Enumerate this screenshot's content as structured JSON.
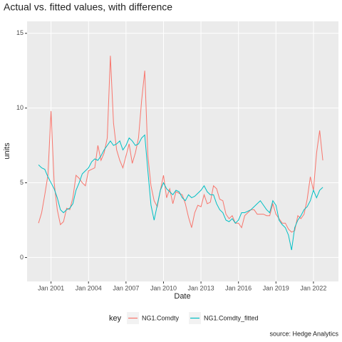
{
  "chart_data": {
    "type": "line",
    "title": "Actual vs. fitted values, with difference",
    "x_label": "Date",
    "y_label": "units",
    "legend_title": "key",
    "caption": "source: Hedge Analytics",
    "x": [
      "2000-01",
      "2000-04",
      "2000-07",
      "2000-10",
      "2001-01",
      "2001-04",
      "2001-07",
      "2001-10",
      "2002-01",
      "2002-04",
      "2002-07",
      "2002-10",
      "2003-01",
      "2003-04",
      "2003-07",
      "2003-10",
      "2004-01",
      "2004-04",
      "2004-07",
      "2004-10",
      "2005-01",
      "2005-04",
      "2005-07",
      "2005-10",
      "2006-01",
      "2006-04",
      "2006-07",
      "2006-10",
      "2007-01",
      "2007-04",
      "2007-07",
      "2007-10",
      "2008-01",
      "2008-04",
      "2008-07",
      "2008-10",
      "2009-01",
      "2009-04",
      "2009-07",
      "2009-10",
      "2010-01",
      "2010-04",
      "2010-07",
      "2010-10",
      "2011-01",
      "2011-04",
      "2011-07",
      "2011-10",
      "2012-01",
      "2012-04",
      "2012-07",
      "2012-10",
      "2013-01",
      "2013-04",
      "2013-07",
      "2013-10",
      "2014-01",
      "2014-04",
      "2014-07",
      "2014-10",
      "2015-01",
      "2015-04",
      "2015-07",
      "2015-10",
      "2016-01",
      "2016-04",
      "2016-07",
      "2016-10",
      "2017-01",
      "2017-04",
      "2017-07",
      "2017-10",
      "2018-01",
      "2018-04",
      "2018-07",
      "2018-10",
      "2019-01",
      "2019-04",
      "2019-07",
      "2019-10",
      "2020-01",
      "2020-04",
      "2020-07",
      "2020-10",
      "2021-01",
      "2021-04",
      "2021-07",
      "2021-10",
      "2022-01",
      "2022-04",
      "2022-07",
      "2022-10"
    ],
    "series": [
      {
        "name": "NG1.Comdty",
        "color": "#F8766D",
        "values": [
          2.3,
          3.0,
          4.2,
          5.5,
          9.8,
          5.0,
          3.2,
          2.2,
          2.4,
          3.3,
          3.2,
          4.0,
          5.5,
          5.3,
          5.0,
          4.8,
          5.8,
          5.9,
          6.0,
          7.5,
          6.5,
          7.0,
          8.0,
          13.5,
          9.0,
          7.2,
          6.5,
          6.0,
          6.8,
          7.6,
          6.3,
          7.0,
          8.0,
          10.5,
          12.5,
          6.8,
          4.8,
          3.8,
          3.4,
          4.5,
          5.5,
          4.0,
          4.6,
          3.6,
          4.4,
          4.3,
          4.2,
          3.6,
          2.7,
          2.0,
          3.0,
          3.5,
          3.4,
          4.2,
          3.6,
          3.7,
          4.8,
          4.6,
          3.9,
          3.8,
          2.9,
          2.6,
          2.8,
          2.3,
          2.3,
          2.0,
          2.8,
          3.0,
          3.2,
          3.2,
          2.9,
          2.9,
          2.9,
          2.8,
          2.8,
          3.6,
          2.9,
          2.6,
          2.3,
          2.3,
          1.9,
          1.7,
          1.8,
          2.8,
          2.6,
          2.9,
          3.9,
          5.4,
          4.5,
          7.0,
          8.5,
          6.5
        ]
      },
      {
        "name": "NG1.Comdty_fitted",
        "color": "#00BFC4",
        "values": [
          6.2,
          6.0,
          5.9,
          5.4,
          5.0,
          4.6,
          4.0,
          3.2,
          3.0,
          3.2,
          3.3,
          3.6,
          4.5,
          5.0,
          5.6,
          5.8,
          6.0,
          6.4,
          6.6,
          6.5,
          6.8,
          7.2,
          7.5,
          7.8,
          7.5,
          7.6,
          7.8,
          7.2,
          7.5,
          8.0,
          7.8,
          7.5,
          7.6,
          8.0,
          8.2,
          5.8,
          3.5,
          2.5,
          3.5,
          4.5,
          5.0,
          4.6,
          4.4,
          4.2,
          4.5,
          4.4,
          4.0,
          3.8,
          4.2,
          4.0,
          4.1,
          4.3,
          4.5,
          4.8,
          4.4,
          4.2,
          4.2,
          3.6,
          3.2,
          3.0,
          2.5,
          2.4,
          2.6,
          2.3,
          2.5,
          3.0,
          3.0,
          3.1,
          3.2,
          3.4,
          3.6,
          3.8,
          3.5,
          3.2,
          3.0,
          3.8,
          3.5,
          2.5,
          2.2,
          2.0,
          1.5,
          0.5,
          2.0,
          2.5,
          2.8,
          3.2,
          3.4,
          3.8,
          4.5,
          4.0,
          4.5,
          4.7
        ]
      }
    ],
    "xlim": [
      "1999-02",
      "2024-01"
    ],
    "xticks": [
      {
        "value": "2001-01",
        "label": "Jan 2001"
      },
      {
        "value": "2004-01",
        "label": "Jan 2004"
      },
      {
        "value": "2007-01",
        "label": "Jan 2007"
      },
      {
        "value": "2010-01",
        "label": "Jan 2010"
      },
      {
        "value": "2013-01",
        "label": "Jan 2013"
      },
      {
        "value": "2016-01",
        "label": "Jan 2016"
      },
      {
        "value": "2019-01",
        "label": "Jan 2019"
      },
      {
        "value": "2022-01",
        "label": "Jan 2022"
      }
    ],
    "ylim": [
      -1.6,
      15.8
    ],
    "yticks": [
      0,
      5,
      10,
      15
    ],
    "grid": true,
    "legend_position": "bottom"
  }
}
